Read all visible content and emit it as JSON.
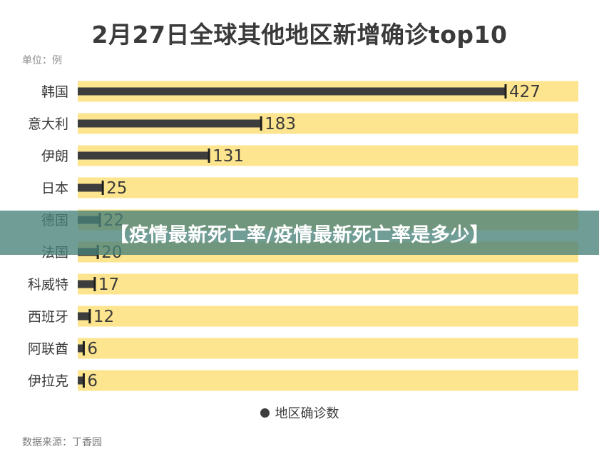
{
  "chart_data": {
    "type": "bar",
    "orientation": "horizontal",
    "title": "2月27日全球其他地区新增确诊top10",
    "unit_label": "单位：例",
    "categories": [
      "韩国",
      "意大利",
      "伊朗",
      "日本",
      "德国",
      "法国",
      "科威特",
      "西班牙",
      "阿联酋",
      "伊拉克"
    ],
    "series": [
      {
        "name": "地区确诊数",
        "values": [
          427,
          183,
          131,
          25,
          22,
          20,
          17,
          12,
          6,
          6
        ]
      }
    ],
    "value_labels": [
      "427",
      "183",
      "131",
      "25",
      "22",
      "20",
      "17",
      "12",
      "6",
      "6"
    ],
    "xlim": [
      0,
      500
    ],
    "legend_position": "bottom",
    "grid": false,
    "colors": {
      "bar": "#3d3d3d",
      "track": "#fde48e",
      "text": "#3a3a3a"
    }
  },
  "source": "数据来源：丁香园",
  "banner": {
    "text": "【疫情最新死亡率/疫情最新死亡率是多少】"
  }
}
